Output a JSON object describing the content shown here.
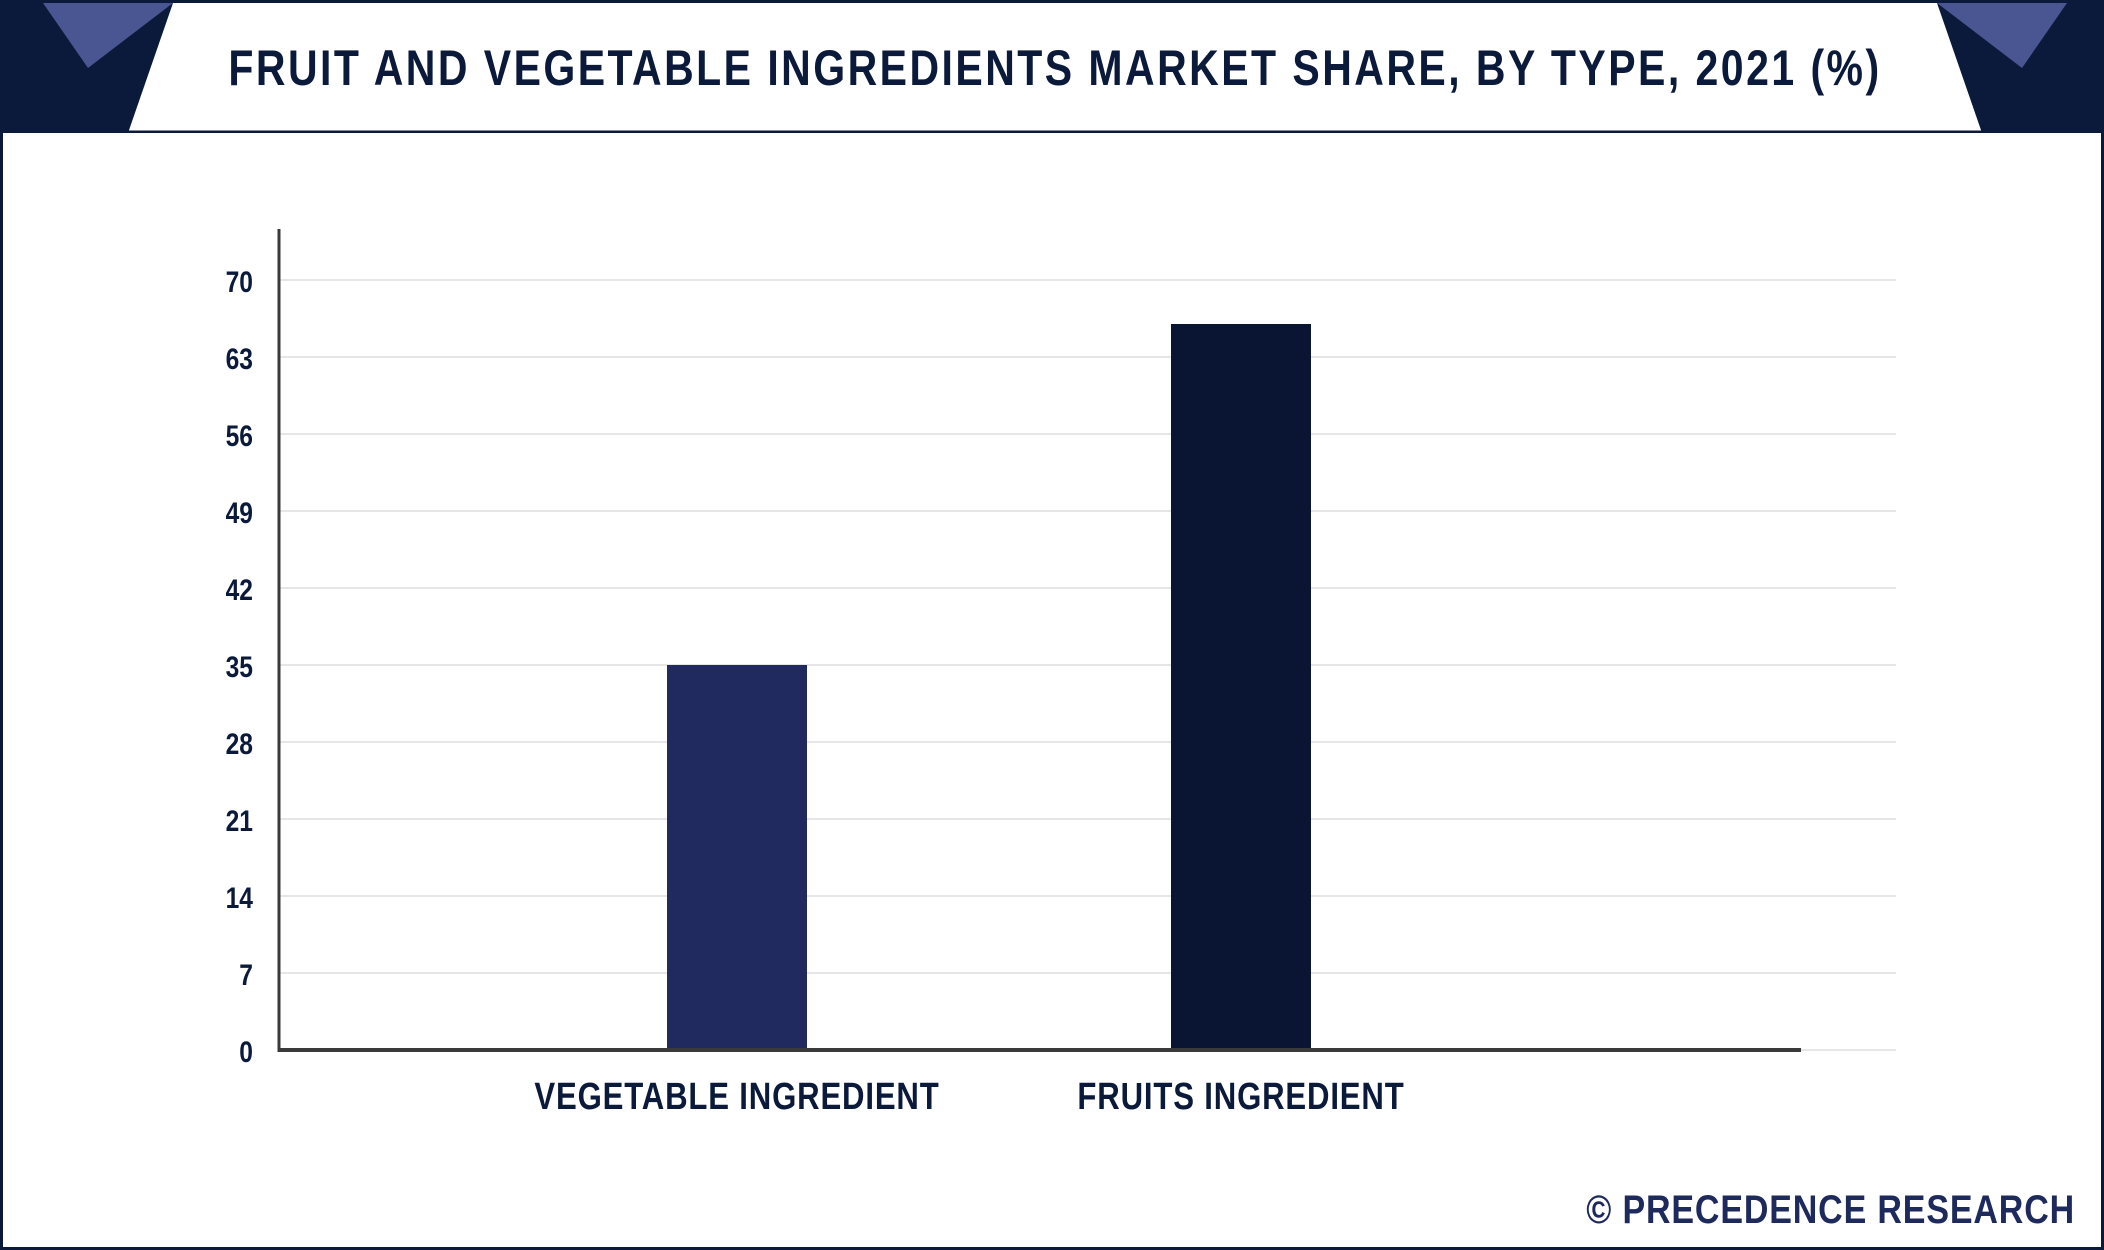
{
  "title": "FRUIT AND VEGETABLE INGREDIENTS MARKET SHARE, BY TYPE, 2021 (%)",
  "footer": "© PRECEDENCE RESEARCH",
  "colors": {
    "header_dark": "#0b1a3a",
    "header_accent": "#4a5691",
    "bar_vegetable": "#212a5f",
    "bar_fruits": "#0a1433",
    "grid": "#e6e6e6",
    "axis": "#3a3a3a"
  },
  "chart_data": {
    "type": "bar",
    "title": "FRUIT AND VEGETABLE INGREDIENTS MARKET SHARE, BY TYPE, 2021 (%)",
    "categories": [
      "VEGETABLE INGREDIENT",
      "FRUITS INGREDIENT"
    ],
    "values": [
      35,
      66
    ],
    "bar_colors": [
      "#212a5f",
      "#0a1433"
    ],
    "yticks": [
      0,
      7,
      14,
      21,
      28,
      35,
      42,
      49,
      56,
      63,
      70
    ],
    "ylim": [
      0,
      70
    ],
    "xlabel": "",
    "ylabel": "",
    "grid": true,
    "legend": "none"
  }
}
